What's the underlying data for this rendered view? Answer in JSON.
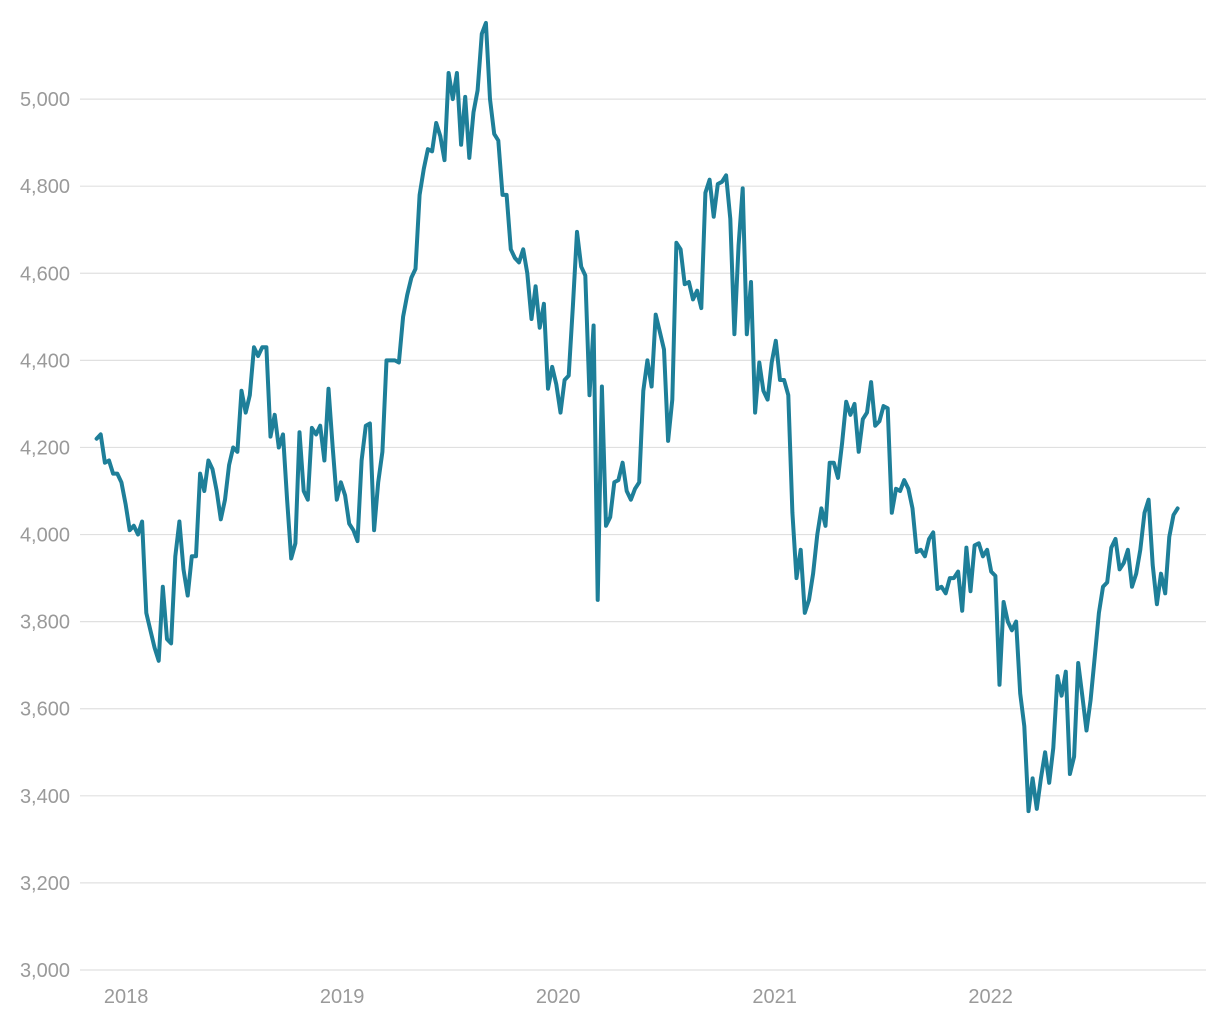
{
  "chart_data": {
    "type": "line",
    "title": "",
    "xlabel": "",
    "ylabel": "",
    "ylim": [
      3000,
      5200
    ],
    "y_ticks": [
      3000,
      3200,
      3400,
      3600,
      3800,
      4000,
      4200,
      4400,
      4600,
      4800,
      5000
    ],
    "y_tick_labels": [
      "3,000",
      "3,200",
      "3,400",
      "3,600",
      "3,800",
      "4,000",
      "4,200",
      "4,400",
      "4,600",
      "4,800",
      "5,000"
    ],
    "x_range": [
      "2017-10-15",
      "2022-12-31"
    ],
    "x_ticks": [
      "2018-01-01",
      "2019-01-01",
      "2020-01-01",
      "2021-01-01",
      "2022-01-01"
    ],
    "x_tick_labels": [
      "2018",
      "2019",
      "2020",
      "2021",
      "2022"
    ],
    "grid": "horizontal",
    "legend": "none",
    "colors": {
      "line": "#1e7f99",
      "grid": "#e0e0e0",
      "tick_text": "#9a9a9a"
    },
    "series": [
      {
        "x": [
          "2017-11-12",
          "2017-11-19",
          "2017-11-26",
          "2017-12-03",
          "2017-12-10",
          "2017-12-17",
          "2017-12-24",
          "2017-12-31",
          "2018-01-07",
          "2018-01-14",
          "2018-01-21",
          "2018-01-28",
          "2018-02-04",
          "2018-02-11",
          "2018-02-18",
          "2018-02-25",
          "2018-03-04",
          "2018-03-11",
          "2018-03-18",
          "2018-03-25",
          "2018-04-01",
          "2018-04-08",
          "2018-04-15",
          "2018-04-22",
          "2018-04-29",
          "2018-05-06",
          "2018-05-13",
          "2018-05-20",
          "2018-05-27",
          "2018-06-03",
          "2018-06-10",
          "2018-06-17",
          "2018-06-24",
          "2018-07-01",
          "2018-07-08",
          "2018-07-15",
          "2018-07-22",
          "2018-07-29",
          "2018-08-05",
          "2018-08-12",
          "2018-08-19",
          "2018-08-26",
          "2018-09-02",
          "2018-09-09",
          "2018-09-16",
          "2018-09-23",
          "2018-09-30",
          "2018-10-07",
          "2018-10-14",
          "2018-10-21",
          "2018-10-28",
          "2018-11-04",
          "2018-11-11",
          "2018-11-18",
          "2018-11-25",
          "2018-12-02",
          "2018-12-09",
          "2018-12-16",
          "2018-12-23",
          "2018-12-30",
          "2019-01-06",
          "2019-01-13",
          "2019-01-20",
          "2019-01-27",
          "2019-02-03",
          "2019-02-10",
          "2019-02-17",
          "2019-02-24",
          "2019-03-03",
          "2019-03-10",
          "2019-03-17",
          "2019-03-24",
          "2019-03-31",
          "2019-04-07",
          "2019-04-14",
          "2019-04-21",
          "2019-04-28",
          "2019-05-05",
          "2019-05-12",
          "2019-05-19",
          "2019-05-26",
          "2019-06-02",
          "2019-06-09",
          "2019-06-16",
          "2019-06-23",
          "2019-06-30",
          "2019-07-07",
          "2019-07-14",
          "2019-07-21",
          "2019-07-28",
          "2019-08-04",
          "2019-08-11",
          "2019-08-18",
          "2019-08-25",
          "2019-09-01",
          "2019-09-08",
          "2019-09-15",
          "2019-09-22",
          "2019-09-29",
          "2019-10-06",
          "2019-10-13",
          "2019-10-20",
          "2019-10-27",
          "2019-11-03",
          "2019-11-10",
          "2019-11-17",
          "2019-11-24",
          "2019-12-01",
          "2019-12-08",
          "2019-12-15",
          "2019-12-22",
          "2019-12-29",
          "2020-01-05",
          "2020-01-12",
          "2020-01-19",
          "2020-01-26",
          "2020-02-02",
          "2020-02-09",
          "2020-02-16",
          "2020-02-23",
          "2020-03-01",
          "2020-03-08",
          "2020-03-15",
          "2020-03-22",
          "2020-03-29",
          "2020-04-05",
          "2020-04-12",
          "2020-04-19",
          "2020-04-26",
          "2020-05-03",
          "2020-05-10",
          "2020-05-17",
          "2020-05-24",
          "2020-05-31",
          "2020-06-07",
          "2020-06-14",
          "2020-06-21",
          "2020-06-28",
          "2020-07-05",
          "2020-07-12",
          "2020-07-19",
          "2020-07-26",
          "2020-08-02",
          "2020-08-09",
          "2020-08-16",
          "2020-08-23",
          "2020-08-30",
          "2020-09-06",
          "2020-09-13",
          "2020-09-20",
          "2020-09-27",
          "2020-10-04",
          "2020-10-11",
          "2020-10-18",
          "2020-10-25",
          "2020-11-01",
          "2020-11-08",
          "2020-11-15",
          "2020-11-22",
          "2020-11-29",
          "2020-12-06",
          "2020-12-13",
          "2020-12-20",
          "2020-12-27",
          "2021-01-03",
          "2021-01-10",
          "2021-01-17",
          "2021-01-24",
          "2021-01-31",
          "2021-02-07",
          "2021-02-14",
          "2021-02-21",
          "2021-02-28",
          "2021-03-07",
          "2021-03-14",
          "2021-03-21",
          "2021-03-28",
          "2021-04-04",
          "2021-04-11",
          "2021-04-18",
          "2021-04-25",
          "2021-05-02",
          "2021-05-09",
          "2021-05-16",
          "2021-05-23",
          "2021-05-30",
          "2021-06-06",
          "2021-06-13",
          "2021-06-20",
          "2021-06-27",
          "2021-07-04",
          "2021-07-11",
          "2021-07-18",
          "2021-07-25",
          "2021-08-01",
          "2021-08-08",
          "2021-08-15",
          "2021-08-22",
          "2021-08-29",
          "2021-09-05",
          "2021-09-12",
          "2021-09-19",
          "2021-09-26",
          "2021-10-03",
          "2021-10-10",
          "2021-10-17",
          "2021-10-24",
          "2021-10-31",
          "2021-11-07",
          "2021-11-14",
          "2021-11-21",
          "2021-11-28",
          "2021-12-05",
          "2021-12-12",
          "2021-12-19",
          "2021-12-26",
          "2022-01-02",
          "2022-01-09",
          "2022-01-16",
          "2022-01-23",
          "2022-01-30",
          "2022-02-06",
          "2022-02-13",
          "2022-02-20",
          "2022-02-27",
          "2022-03-06",
          "2022-03-13",
          "2022-03-20",
          "2022-03-27",
          "2022-04-03",
          "2022-04-10",
          "2022-04-17",
          "2022-04-24",
          "2022-05-01",
          "2022-05-08",
          "2022-05-15",
          "2022-05-22",
          "2022-05-29",
          "2022-06-05",
          "2022-06-12",
          "2022-06-19",
          "2022-06-26",
          "2022-07-03",
          "2022-07-10",
          "2022-07-17",
          "2022-07-24",
          "2022-07-31",
          "2022-08-07",
          "2022-08-14",
          "2022-08-21",
          "2022-08-28",
          "2022-09-04",
          "2022-09-11",
          "2022-09-18",
          "2022-09-25",
          "2022-10-02",
          "2022-10-09",
          "2022-10-16",
          "2022-10-23",
          "2022-10-30",
          "2022-11-06",
          "2022-11-13"
        ],
        "y": [
          4220,
          4230,
          4165,
          4170,
          4140,
          4140,
          4120,
          4070,
          4010,
          4020,
          4000,
          4030,
          3820,
          3780,
          3740,
          3710,
          3880,
          3760,
          3750,
          3950,
          4030,
          3920,
          3860,
          3950,
          3950,
          4140,
          4100,
          4170,
          4150,
          4100,
          4035,
          4080,
          4160,
          4200,
          4190,
          4330,
          4280,
          4320,
          4430,
          4410,
          4430,
          4430,
          4225,
          4275,
          4200,
          4230,
          4080,
          3945,
          3980,
          4235,
          4100,
          4080,
          4245,
          4230,
          4250,
          4170,
          4335,
          4200,
          4080,
          4120,
          4090,
          4025,
          4010,
          3985,
          4170,
          4250,
          4255,
          4010,
          4120,
          4190,
          4400,
          4400,
          4400,
          4395,
          4500,
          4550,
          4590,
          4610,
          4780,
          4840,
          4885,
          4880,
          4945,
          4915,
          4860,
          5060,
          5000,
          5060,
          4895,
          5005,
          4865,
          4970,
          5020,
          5150,
          5175,
          5000,
          4920,
          4905,
          4780,
          4780,
          4655,
          4635,
          4625,
          4655,
          4600,
          4495,
          4570,
          4475,
          4530,
          4335,
          4385,
          4345,
          4280,
          4355,
          4365,
          4525,
          4695,
          4615,
          4595,
          4320,
          4480,
          3850,
          4340,
          4020,
          4040,
          4120,
          4125,
          4165,
          4100,
          4080,
          4105,
          4120,
          4330,
          4400,
          4340,
          4505,
          4465,
          4425,
          4215,
          4310,
          4670,
          4655,
          4575,
          4580,
          4540,
          4560,
          4520,
          4785,
          4815,
          4730,
          4805,
          4810,
          4825,
          4725,
          4460,
          4665,
          4795,
          4460,
          4580,
          4280,
          4395,
          4330,
          4310,
          4395,
          4445,
          4355,
          4355,
          4320,
          4050,
          3900,
          3965,
          3820,
          3850,
          3910,
          4000,
          4060,
          4020,
          4165,
          4165,
          4130,
          4210,
          4305,
          4275,
          4300,
          4190,
          4265,
          4280,
          4350,
          4250,
          4260,
          4295,
          4290,
          4050,
          4105,
          4100,
          4125,
          4105,
          4060,
          3960,
          3965,
          3950,
          3990,
          4005,
          3875,
          3880,
          3865,
          3900,
          3900,
          3915,
          3825,
          3970,
          3870,
          3975,
          3980,
          3950,
          3965,
          3915,
          3905,
          3655,
          3845,
          3800,
          3780,
          3800,
          3635,
          3560,
          3365,
          3440,
          3370,
          3440,
          3500,
          3430,
          3510,
          3675,
          3630,
          3685,
          3450,
          3490,
          3705,
          3630,
          3550,
          3620,
          3720,
          3820,
          3880,
          3890,
          3970,
          3990,
          3920,
          3935,
          3965,
          3880,
          3910,
          3965,
          4050,
          4080,
          3930,
          3840,
          3910,
          3865,
          3995,
          4045,
          4060
        ]
      }
    ]
  }
}
